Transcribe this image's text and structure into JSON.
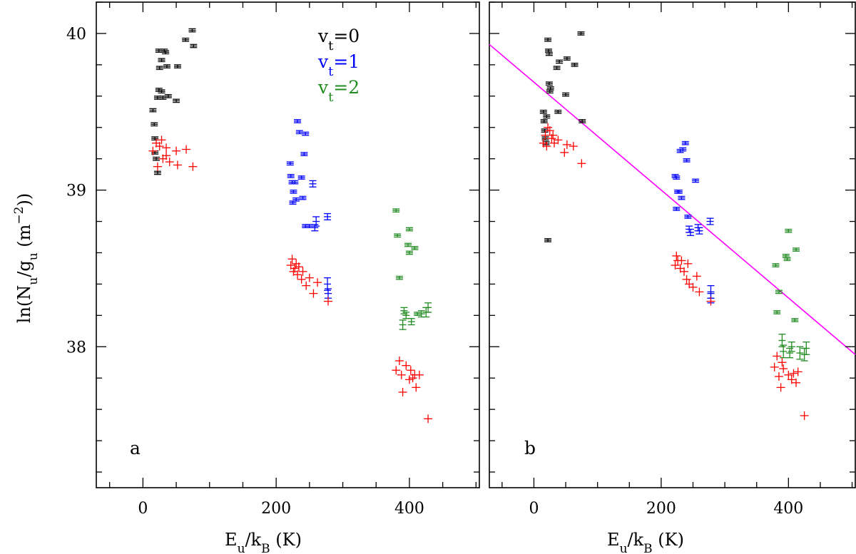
{
  "chart_data": [
    {
      "type": "scatter",
      "panel_label": "a",
      "xlabel": "E_u/k_B (K)",
      "ylabel": "ln(N_u/g_u (m^-2))",
      "xlim": [
        -70,
        505
      ],
      "ylim": [
        37.1,
        40.2
      ],
      "x_ticks": [
        0,
        200,
        400
      ],
      "y_ticks": [
        38,
        39,
        40
      ],
      "x_minor_step": 50,
      "y_minor_step": 0.2,
      "legend": {
        "placement": "top-right",
        "entries": [
          {
            "label_main": "v",
            "label_sub": "t",
            "label_rest": "=0",
            "color": "#000000"
          },
          {
            "label_main": "v",
            "label_sub": "t",
            "label_rest": "=1",
            "color": "#0000ff"
          },
          {
            "label_main": "v",
            "label_sub": "t",
            "label_rest": "=2",
            "color": "#228b22"
          }
        ]
      },
      "series": [
        {
          "name": "vt=0",
          "color": "#000000",
          "marker": "errorbar",
          "points": [
            [
              15,
              39.51,
              0.01
            ],
            [
              17,
              39.42,
              0.01
            ],
            [
              18,
              39.33,
              0.01
            ],
            [
              18,
              39.24,
              0.01
            ],
            [
              20,
              39.2,
              0.01
            ],
            [
              22,
              39.11,
              0.01
            ],
            [
              22,
              39.59,
              0.01
            ],
            [
              24,
              39.64,
              0.01
            ],
            [
              24,
              39.89,
              0.01
            ],
            [
              25,
              39.78,
              0.01
            ],
            [
              28,
              39.63,
              0.01
            ],
            [
              28,
              39.83,
              0.01
            ],
            [
              30,
              39.59,
              0.01
            ],
            [
              32,
              39.89,
              0.01
            ],
            [
              34,
              39.88,
              0.01
            ],
            [
              36,
              39.79,
              0.01
            ],
            [
              38,
              39.6,
              0.01
            ],
            [
              50,
              39.57,
              0.01
            ],
            [
              52,
              39.79,
              0.01
            ],
            [
              64,
              39.96,
              0.01
            ],
            [
              74,
              40.02,
              0.01
            ],
            [
              76,
              39.92,
              0.01
            ]
          ]
        },
        {
          "name": "vt=1",
          "color": "#0000ff",
          "marker": "errorbar",
          "points": [
            [
              221,
              39.17,
              0.01
            ],
            [
              222,
              39.09,
              0.01
            ],
            [
              224,
              39.05,
              0.01
            ],
            [
              225,
              38.92,
              0.01
            ],
            [
              226,
              38.99,
              0.01
            ],
            [
              228,
              39.05,
              0.01
            ],
            [
              230,
              38.94,
              0.01
            ],
            [
              232,
              39.44,
              0.01
            ],
            [
              235,
              39.37,
              0.01
            ],
            [
              238,
              39.08,
              0.01
            ],
            [
              240,
              38.95,
              0.01
            ],
            [
              242,
              39.23,
              0.01
            ],
            [
              244,
              39.36,
              0.01
            ],
            [
              244,
              38.77,
              0.01
            ],
            [
              250,
              38.77,
              0.01
            ],
            [
              255,
              39.04,
              0.02
            ],
            [
              258,
              38.76,
              0.02
            ],
            [
              260,
              38.8,
              0.03
            ],
            [
              277,
              38.83,
              0.02
            ],
            [
              277,
              38.4,
              0.04
            ],
            [
              278,
              38.34,
              0.03
            ]
          ]
        },
        {
          "name": "vt=2",
          "color": "#228b22",
          "marker": "errorbar",
          "points": [
            [
              380,
              38.87,
              0.01
            ],
            [
              382,
              38.71,
              0.01
            ],
            [
              385,
              38.44,
              0.01
            ],
            [
              390,
              38.14,
              0.03
            ],
            [
              392,
              38.23,
              0.02
            ],
            [
              395,
              38.2,
              0.02
            ],
            [
              398,
              38.65,
              0.01
            ],
            [
              400,
              38.75,
              0.01
            ],
            [
              400,
              38.6,
              0.01
            ],
            [
              403,
              38.16,
              0.02
            ],
            [
              408,
              38.63,
              0.01
            ],
            [
              412,
              38.21,
              0.01
            ],
            [
              418,
              38.21,
              0.02
            ],
            [
              425,
              38.22,
              0.03
            ],
            [
              428,
              38.25,
              0.03
            ]
          ]
        },
        {
          "name": "red",
          "color": "#ff0000",
          "marker": "plus",
          "points": [
            [
              15,
              39.25
            ],
            [
              20,
              39.3
            ],
            [
              22,
              39.15
            ],
            [
              25,
              39.28
            ],
            [
              28,
              39.32
            ],
            [
              30,
              39.2
            ],
            [
              35,
              39.22
            ],
            [
              35,
              39.27
            ],
            [
              40,
              39.18
            ],
            [
              50,
              39.25
            ],
            [
              52,
              39.16
            ],
            [
              65,
              39.26
            ],
            [
              75,
              39.15
            ],
            [
              222,
              38.52
            ],
            [
              224,
              38.56
            ],
            [
              226,
              38.48
            ],
            [
              228,
              38.5
            ],
            [
              230,
              38.53
            ],
            [
              232,
              38.46
            ],
            [
              234,
              38.51
            ],
            [
              238,
              38.43
            ],
            [
              240,
              38.48
            ],
            [
              245,
              38.39
            ],
            [
              250,
              38.44
            ],
            [
              256,
              38.34
            ],
            [
              262,
              38.41
            ],
            [
              278,
              38.29
            ],
            [
              380,
              37.85
            ],
            [
              385,
              37.91
            ],
            [
              388,
              37.82
            ],
            [
              390,
              37.71
            ],
            [
              395,
              37.88
            ],
            [
              400,
              37.79
            ],
            [
              402,
              37.85
            ],
            [
              405,
              37.8
            ],
            [
              408,
              37.82
            ],
            [
              410,
              37.74
            ],
            [
              415,
              37.82
            ],
            [
              428,
              37.54
            ]
          ]
        }
      ]
    },
    {
      "type": "scatter",
      "panel_label": "b",
      "xlabel": "E_u/k_B (K)",
      "ylabel": "",
      "xlim": [
        -70,
        505
      ],
      "ylim": [
        37.1,
        40.2
      ],
      "x_ticks": [
        0,
        200,
        400
      ],
      "y_ticks": [
        38,
        39,
        40
      ],
      "x_minor_step": 50,
      "y_minor_step": 0.2,
      "fit_line": {
        "color": "#ff00ff",
        "x": [
          -70,
          505
        ],
        "y": [
          39.93,
          37.95
        ]
      },
      "series": [
        {
          "name": "vt=0",
          "color": "#000000",
          "marker": "errorbar",
          "points": [
            [
              15,
              39.5,
              0.01
            ],
            [
              16,
              39.44,
              0.01
            ],
            [
              17,
              39.38,
              0.01
            ],
            [
              18,
              39.33,
              0.01
            ],
            [
              19,
              39.3,
              0.01
            ],
            [
              20,
              39.47,
              0.01
            ],
            [
              22,
              39.96,
              0.01
            ],
            [
              22,
              38.68,
              0.01
            ],
            [
              23,
              39.89,
              0.01
            ],
            [
              24,
              39.87,
              0.01
            ],
            [
              24,
              39.68,
              0.01
            ],
            [
              25,
              39.63,
              0.01
            ],
            [
              26,
              39.65,
              0.01
            ],
            [
              36,
              39.78,
              0.01
            ],
            [
              38,
              39.5,
              0.01
            ],
            [
              40,
              39.82,
              0.01
            ],
            [
              50,
              39.61,
              0.01
            ],
            [
              52,
              39.84,
              0.01
            ],
            [
              64,
              39.8,
              0.01
            ],
            [
              74,
              40.0,
              0.01
            ],
            [
              76,
              39.44,
              0.01
            ]
          ]
        },
        {
          "name": "vt=1",
          "color": "#0000ff",
          "marker": "errorbar",
          "points": [
            [
              222,
              39.09,
              0.01
            ],
            [
              224,
              39.08,
              0.01
            ],
            [
              224,
              38.88,
              0.01
            ],
            [
              226,
              38.99,
              0.01
            ],
            [
              228,
              38.99,
              0.01
            ],
            [
              230,
              39.25,
              0.01
            ],
            [
              232,
              38.95,
              0.01
            ],
            [
              234,
              39.26,
              0.01
            ],
            [
              238,
              39.3,
              0.01
            ],
            [
              240,
              39.19,
              0.01
            ],
            [
              242,
              38.83,
              0.01
            ],
            [
              244,
              38.75,
              0.02
            ],
            [
              246,
              38.73,
              0.02
            ],
            [
              254,
              39.06,
              0.01
            ],
            [
              258,
              38.76,
              0.02
            ],
            [
              260,
              38.74,
              0.02
            ],
            [
              277,
              38.8,
              0.02
            ],
            [
              278,
              38.35,
              0.04
            ],
            [
              278,
              38.31,
              0.03
            ]
          ]
        },
        {
          "name": "vt=2",
          "color": "#228b22",
          "marker": "errorbar",
          "points": [
            [
              380,
              38.52,
              0.01
            ],
            [
              382,
              38.22,
              0.01
            ],
            [
              385,
              38.35,
              0.01
            ],
            [
              390,
              38.04,
              0.04
            ],
            [
              392,
              37.97,
              0.04
            ],
            [
              396,
              38.58,
              0.01
            ],
            [
              398,
              38.56,
              0.01
            ],
            [
              400,
              38.74,
              0.01
            ],
            [
              402,
              37.96,
              0.03
            ],
            [
              405,
              38.0,
              0.03
            ],
            [
              410,
              38.17,
              0.01
            ],
            [
              412,
              38.62,
              0.01
            ],
            [
              418,
              37.96,
              0.04
            ],
            [
              425,
              37.95,
              0.04
            ],
            [
              428,
              37.99,
              0.04
            ]
          ]
        },
        {
          "name": "red",
          "color": "#ff0000",
          "marker": "plus",
          "points": [
            [
              15,
              39.3
            ],
            [
              18,
              39.35
            ],
            [
              20,
              39.28
            ],
            [
              22,
              39.4
            ],
            [
              25,
              39.38
            ],
            [
              28,
              39.33
            ],
            [
              30,
              39.35
            ],
            [
              32,
              39.3
            ],
            [
              38,
              39.32
            ],
            [
              48,
              39.24
            ],
            [
              52,
              39.29
            ],
            [
              62,
              39.28
            ],
            [
              75,
              39.17
            ],
            [
              222,
              38.52
            ],
            [
              224,
              38.58
            ],
            [
              226,
              38.55
            ],
            [
              230,
              38.5
            ],
            [
              232,
              38.55
            ],
            [
              236,
              38.48
            ],
            [
              240,
              38.43
            ],
            [
              242,
              38.53
            ],
            [
              244,
              38.4
            ],
            [
              250,
              38.38
            ],
            [
              256,
              38.45
            ],
            [
              260,
              38.35
            ],
            [
              278,
              38.29
            ],
            [
              378,
              37.87
            ],
            [
              382,
              37.94
            ],
            [
              385,
              37.81
            ],
            [
              388,
              37.74
            ],
            [
              390,
              37.9
            ],
            [
              392,
              37.86
            ],
            [
              400,
              37.82
            ],
            [
              405,
              37.79
            ],
            [
              408,
              37.83
            ],
            [
              412,
              37.77
            ],
            [
              415,
              37.84
            ],
            [
              425,
              37.56
            ]
          ]
        }
      ]
    }
  ]
}
